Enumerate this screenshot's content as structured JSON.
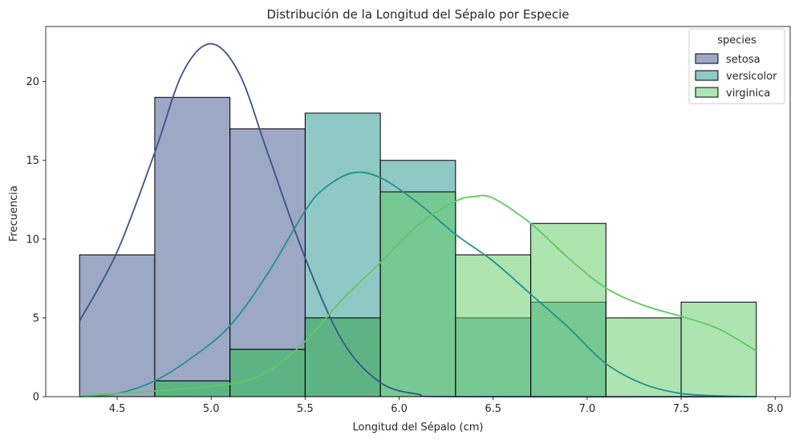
{
  "chart_data": {
    "type": "histogram",
    "title": "Distribución de la Longitud del Sépalo por Especie",
    "xlabel": "Longitud del Sépalo (cm)",
    "ylabel": "Frecuencia",
    "xlim": [
      4.12,
      8.08
    ],
    "ylim": [
      0,
      23.5
    ],
    "x_ticks": [
      4.5,
      5.0,
      5.5,
      6.0,
      6.5,
      7.0,
      7.5,
      8.0
    ],
    "x_tick_labels": [
      "4.5",
      "5.0",
      "5.5",
      "6.0",
      "6.5",
      "7.0",
      "7.5",
      "8.0"
    ],
    "y_ticks": [
      0,
      5,
      10,
      15,
      20
    ],
    "y_tick_labels": [
      "0",
      "5",
      "10",
      "15",
      "20"
    ],
    "bin_edges": [
      4.3,
      4.7,
      5.1,
      5.5,
      5.9,
      6.3,
      6.7,
      7.1,
      7.5,
      7.9
    ],
    "grid": false,
    "legend": {
      "title": "species",
      "placement": "top-right"
    },
    "series": [
      {
        "name": "setosa",
        "color": "#3b528b",
        "bar_color": "#9ea9c5",
        "counts": [
          9,
          19,
          17,
          5,
          0,
          0,
          0,
          0,
          0
        ],
        "kde": [
          [
            4.3,
            4.8
          ],
          [
            4.5,
            9.2
          ],
          [
            4.7,
            15.5
          ],
          [
            4.85,
            20.6
          ],
          [
            5.0,
            22.4
          ],
          [
            5.15,
            20.5
          ],
          [
            5.3,
            15.5
          ],
          [
            5.5,
            8.8
          ],
          [
            5.7,
            3.5
          ],
          [
            5.9,
            0.9
          ],
          [
            6.1,
            0.15
          ],
          [
            6.3,
            0.0
          ],
          [
            7.9,
            0.0
          ]
        ]
      },
      {
        "name": "versicolor",
        "color": "#21918c",
        "bar_color": "#8fc8c5",
        "counts": [
          0,
          1,
          3,
          18,
          15,
          5,
          6,
          0,
          0
        ],
        "kde": [
          [
            4.3,
            0.0
          ],
          [
            4.5,
            0.2
          ],
          [
            4.7,
            1.0
          ],
          [
            4.9,
            2.5
          ],
          [
            5.1,
            4.5
          ],
          [
            5.3,
            7.8
          ],
          [
            5.5,
            11.8
          ],
          [
            5.6,
            13.2
          ],
          [
            5.75,
            14.2
          ],
          [
            5.9,
            13.9
          ],
          [
            6.1,
            12.3
          ],
          [
            6.3,
            10.3
          ],
          [
            6.5,
            8.6
          ],
          [
            6.7,
            6.5
          ],
          [
            6.9,
            4.4
          ],
          [
            7.1,
            2.1
          ],
          [
            7.3,
            0.8
          ],
          [
            7.5,
            0.2
          ],
          [
            7.7,
            0.05
          ],
          [
            7.9,
            0.0
          ]
        ]
      },
      {
        "name": "virginica",
        "color": "#5ec962",
        "bar_color": "#afe1ac",
        "counts": [
          0,
          1,
          3,
          5,
          13,
          9,
          11,
          5,
          6
        ],
        "kde": [
          [
            4.3,
            0.05
          ],
          [
            4.7,
            0.35
          ],
          [
            5.1,
            0.8
          ],
          [
            5.3,
            1.6
          ],
          [
            5.5,
            3.5
          ],
          [
            5.7,
            6.2
          ],
          [
            5.9,
            8.5
          ],
          [
            6.1,
            10.9
          ],
          [
            6.3,
            12.4
          ],
          [
            6.4,
            12.7
          ],
          [
            6.5,
            12.6
          ],
          [
            6.7,
            11.0
          ],
          [
            6.9,
            8.8
          ],
          [
            7.1,
            6.9
          ],
          [
            7.3,
            5.8
          ],
          [
            7.5,
            5.1
          ],
          [
            7.7,
            4.3
          ],
          [
            7.9,
            2.9
          ]
        ]
      }
    ]
  }
}
